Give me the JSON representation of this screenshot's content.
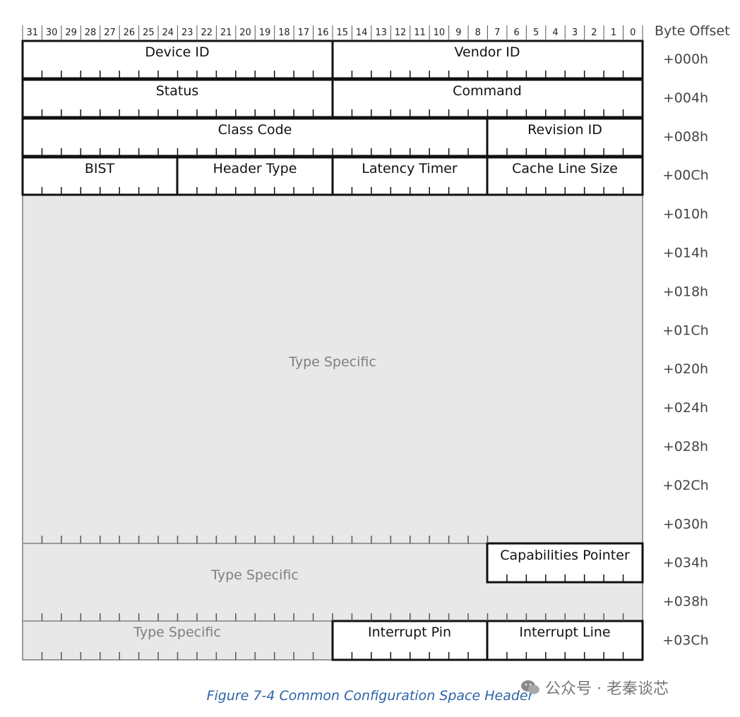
{
  "header": {
    "bit_numbers": [
      "31",
      "30",
      "29",
      "28",
      "27",
      "26",
      "25",
      "24",
      "23",
      "22",
      "21",
      "20",
      "19",
      "18",
      "17",
      "16",
      "15",
      "14",
      "13",
      "12",
      "11",
      "10",
      "9",
      "8",
      "7",
      "6",
      "5",
      "4",
      "3",
      "2",
      "1",
      "0"
    ],
    "byte_offset_label": "Byte Offset"
  },
  "offsets": [
    "+000h",
    "+004h",
    "+008h",
    "+00Ch",
    "+010h",
    "+014h",
    "+018h",
    "+01Ch",
    "+020h",
    "+024h",
    "+028h",
    "+02Ch",
    "+030h",
    "+034h",
    "+038h",
    "+03Ch"
  ],
  "fields": {
    "device_id": "Device ID",
    "vendor_id": "Vendor ID",
    "status": "Status",
    "command": "Command",
    "class_code": "Class Code",
    "revision_id": "Revision ID",
    "bist": "BIST",
    "header_type": "Header Type",
    "latency_timer": "Latency Timer",
    "cache_line_size": "Cache Line Size",
    "type_specific_large": "Type Specific",
    "type_specific_mid": "Type Specific",
    "capabilities_pointer": "Capabilities Pointer",
    "type_specific_small": "Type Specific",
    "interrupt_pin": "Interrupt Pin",
    "interrupt_line": "Interrupt Line"
  },
  "caption": "Figure  7-4  Common Configuration Space Header",
  "watermark": "公众号 · 老秦谈芯",
  "colors": {
    "reserved_fill": "#e8e8e8",
    "caption": "#2d64a6",
    "border": "#111111",
    "gray_border": "#9a9a9a"
  }
}
